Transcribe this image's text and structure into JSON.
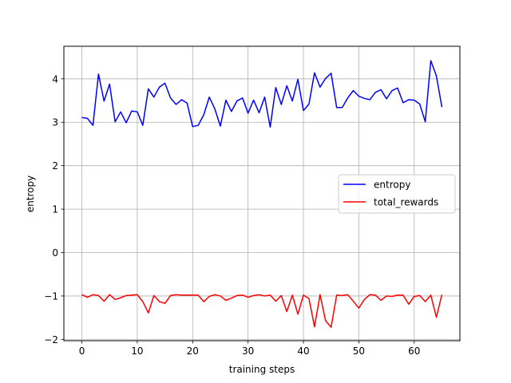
{
  "chart_data": {
    "type": "line",
    "title": "",
    "xlabel": "training steps",
    "ylabel": "entropy",
    "xlim": [
      -3.25,
      68.25
    ],
    "ylim": [
      -2.03,
      4.75
    ],
    "x_ticks": [
      0,
      10,
      20,
      30,
      40,
      50,
      60
    ],
    "y_ticks": [
      -2,
      -1,
      0,
      1,
      2,
      3,
      4
    ],
    "grid": true,
    "legend_position": "center-right",
    "x": [
      0,
      1,
      2,
      3,
      4,
      5,
      6,
      7,
      8,
      9,
      10,
      11,
      12,
      13,
      14,
      15,
      16,
      17,
      18,
      19,
      20,
      21,
      22,
      23,
      24,
      25,
      26,
      27,
      28,
      29,
      30,
      31,
      32,
      33,
      34,
      35,
      36,
      37,
      38,
      39,
      40,
      41,
      42,
      43,
      44,
      45,
      46,
      47,
      48,
      49,
      50,
      51,
      52,
      53,
      54,
      55,
      56,
      57,
      58,
      59,
      60,
      61,
      62,
      63,
      64,
      65
    ],
    "series": [
      {
        "name": "entropy",
        "color": "#0000ff",
        "values": [
          3.11,
          3.09,
          2.93,
          4.11,
          3.49,
          3.88,
          3.01,
          3.24,
          2.99,
          3.26,
          3.24,
          2.93,
          3.77,
          3.58,
          3.81,
          3.9,
          3.56,
          3.41,
          3.52,
          3.44,
          2.9,
          2.93,
          3.17,
          3.58,
          3.31,
          2.91,
          3.51,
          3.25,
          3.49,
          3.56,
          3.21,
          3.51,
          3.22,
          3.58,
          2.89,
          3.8,
          3.41,
          3.84,
          3.49,
          3.99,
          3.27,
          3.42,
          4.14,
          3.81,
          4.01,
          4.13,
          3.34,
          3.34,
          3.56,
          3.73,
          3.6,
          3.55,
          3.52,
          3.69,
          3.75,
          3.54,
          3.73,
          3.79,
          3.45,
          3.52,
          3.51,
          3.42,
          3.01,
          4.42,
          4.07,
          3.35
        ]
      },
      {
        "name": "total_rewards",
        "color": "#ff0000",
        "values": [
          -0.97,
          -1.03,
          -0.97,
          -0.99,
          -1.12,
          -0.97,
          -1.08,
          -1.04,
          -0.99,
          -0.98,
          -0.97,
          -1.13,
          -1.39,
          -0.99,
          -1.13,
          -1.17,
          -0.99,
          -0.97,
          -0.98,
          -0.98,
          -0.98,
          -0.98,
          -1.13,
          -1.01,
          -0.97,
          -1.0,
          -1.1,
          -1.05,
          -0.99,
          -0.98,
          -1.03,
          -0.99,
          -0.97,
          -1.0,
          -0.98,
          -1.12,
          -0.99,
          -1.36,
          -0.98,
          -1.42,
          -0.98,
          -1.06,
          -1.71,
          -0.97,
          -1.57,
          -1.72,
          -0.98,
          -0.99,
          -0.97,
          -1.12,
          -1.28,
          -1.08,
          -0.97,
          -0.98,
          -1.1,
          -1.0,
          -1.01,
          -0.98,
          -0.98,
          -1.19,
          -1.01,
          -0.99,
          -1.13,
          -0.98,
          -1.49,
          -0.97
        ]
      }
    ]
  }
}
